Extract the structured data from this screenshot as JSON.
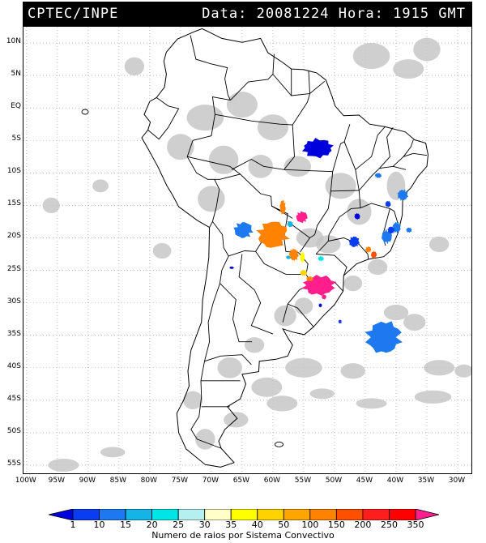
{
  "header": {
    "agency": "CPTEC/INPE",
    "datetime": "Data: 20081224 Hora: 1915 GMT"
  },
  "axes": {
    "lat_labels": [
      "10N",
      "5N",
      "EQ",
      "5S",
      "10S",
      "15S",
      "20S",
      "25S",
      "30S",
      "35S",
      "40S",
      "45S",
      "50S",
      "55S"
    ],
    "lat_values": [
      10,
      5,
      0,
      -5,
      -10,
      -15,
      -20,
      -25,
      -30,
      -35,
      -40,
      -45,
      -50,
      -55
    ],
    "lon_labels": [
      "100W",
      "95W",
      "90W",
      "85W",
      "80W",
      "75W",
      "70W",
      "65W",
      "60W",
      "55W",
      "50W",
      "45W",
      "40W",
      "35W",
      "30W"
    ],
    "lon_values": [
      -100,
      -95,
      -90,
      -85,
      -80,
      -75,
      -70,
      -65,
      -60,
      -55,
      -50,
      -45,
      -40,
      -35,
      -30
    ],
    "lon_range": [
      -100.5,
      -27.5
    ],
    "lat_range": [
      -56.5,
      12.5
    ],
    "gridlines": "dotted"
  },
  "colorbar": {
    "title": "Numero de raios por Sistema Convectivo",
    "ticks": [
      "1",
      "10",
      "15",
      "20",
      "25",
      "30",
      "35",
      "40",
      "50",
      "100",
      "150",
      "200",
      "250",
      "350"
    ],
    "colors": [
      "#0000dd",
      "#0a3cf0",
      "#1e78f0",
      "#14b4e6",
      "#00e6e6",
      "#b4f0f0",
      "#ffffc8",
      "#ffff00",
      "#ffd200",
      "#ffa500",
      "#ff8200",
      "#ff5000",
      "#ff1e1e",
      "#ff0000",
      "#ff1e8c"
    ]
  },
  "map_features": {
    "cloud_color": "#c3c3c3",
    "border_color": "#000000",
    "systems": [
      {
        "name": "system-para",
        "lon": -52.7,
        "lat": -6.2,
        "rx": 2.6,
        "ry": 1.5,
        "color": "#0000dd"
      },
      {
        "name": "system-rs-sc",
        "lon": -52.5,
        "lat": -27.3,
        "rx": 2.8,
        "ry": 1.6,
        "color": "#ff1e8c"
      },
      {
        "name": "system-atlantic",
        "lon": -42.0,
        "lat": -35.3,
        "rx": 3.0,
        "ry": 2.6,
        "color": "#1e78f0"
      },
      {
        "name": "system-mato-grosso",
        "lon": -60.0,
        "lat": -19.5,
        "rx": 2.6,
        "ry": 2.2,
        "color": "#ff8200"
      },
      {
        "name": "system-bolivia",
        "lon": -64.8,
        "lat": -18.8,
        "rx": 1.6,
        "ry": 1.3,
        "color": "#1e78f0"
      },
      {
        "name": "system-goias",
        "lon": -55.3,
        "lat": -16.8,
        "rx": 1.0,
        "ry": 0.9,
        "color": "#ff1e8c"
      }
    ]
  }
}
